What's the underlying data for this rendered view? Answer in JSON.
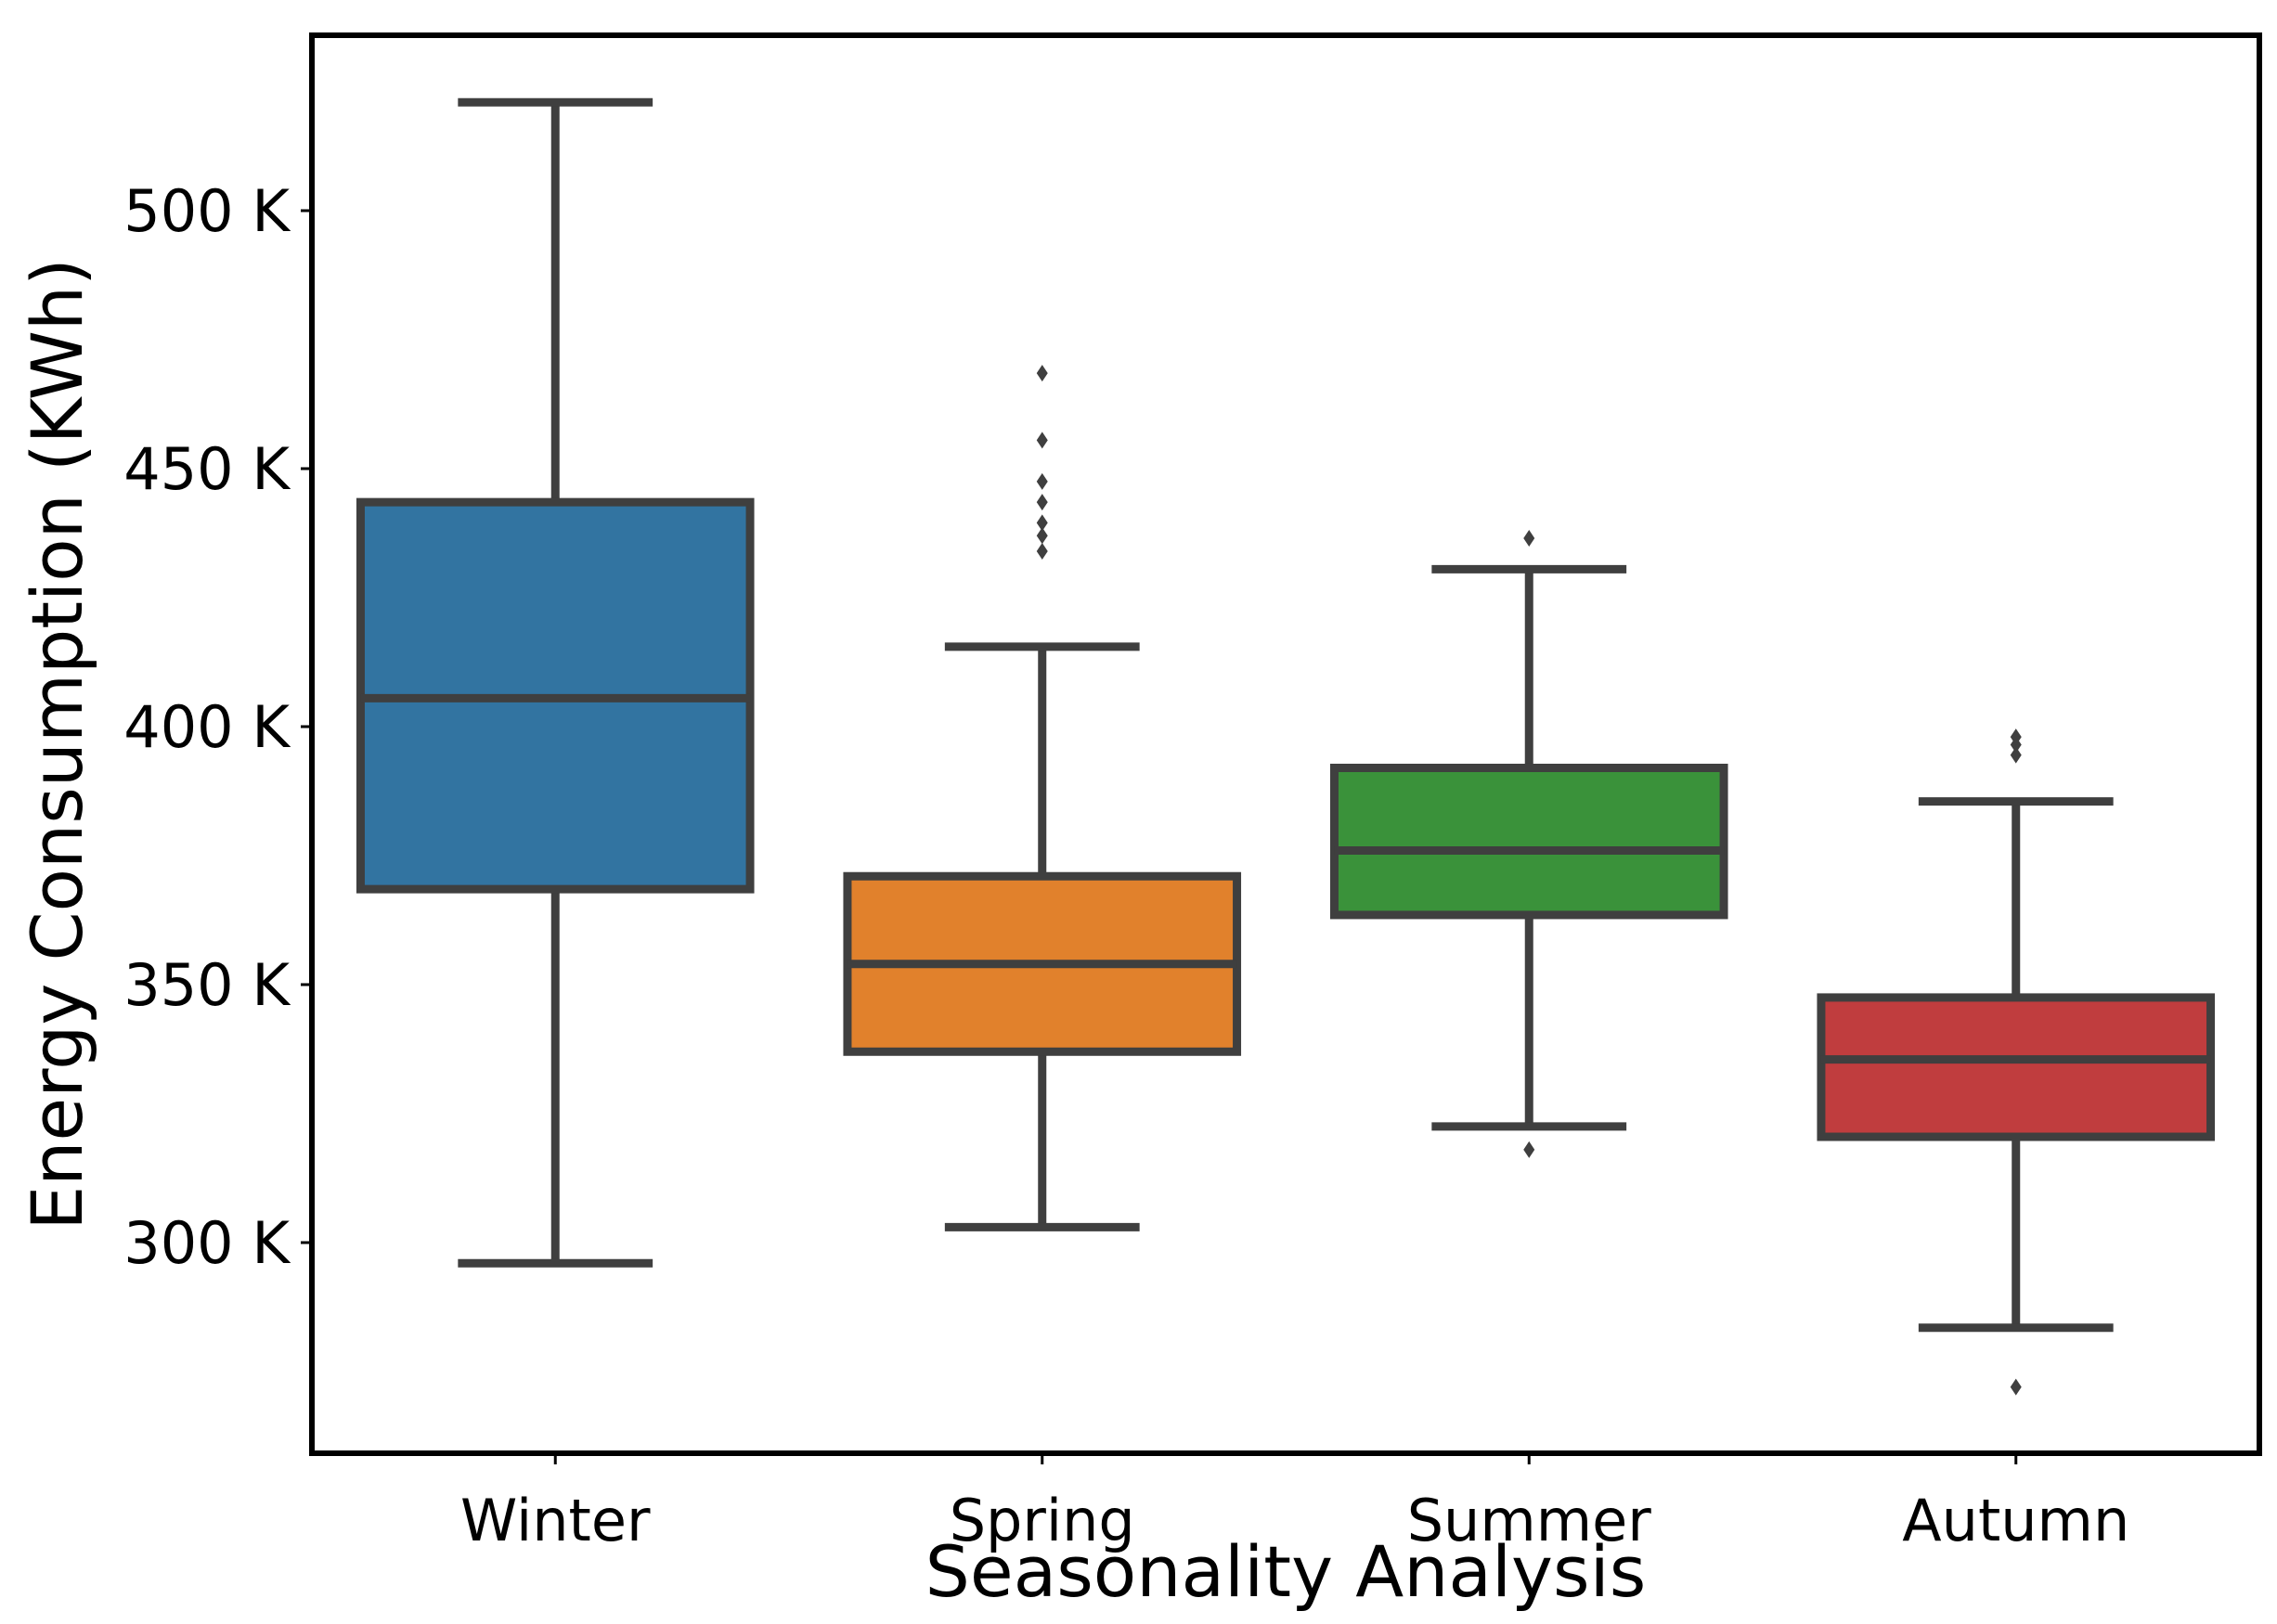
{
  "chart_data": {
    "type": "boxplot",
    "title": "",
    "xlabel": "Seasonality Analysis",
    "ylabel": "Energy Consumption (KWh)",
    "ylim": [
      260000,
      532000
    ],
    "yticks": [
      {
        "value": 300000,
        "label": "300 K"
      },
      {
        "value": 350000,
        "label": "350 K"
      },
      {
        "value": 400000,
        "label": "400 K"
      },
      {
        "value": 450000,
        "label": "450 K"
      },
      {
        "value": 500000,
        "label": "500 K"
      }
    ],
    "grid": false,
    "categories": [
      "Winter",
      "Spring",
      "Summer",
      "Autumn"
    ],
    "boxes": [
      {
        "category": "Winter",
        "color": "#3274a1",
        "whisker_low": 296000,
        "q1": 368500,
        "median": 405500,
        "q3": 443500,
        "whisker_high": 521000,
        "outliers": []
      },
      {
        "category": "Spring",
        "color": "#e1812c",
        "whisker_low": 303000,
        "q1": 337000,
        "median": 354000,
        "q3": 371000,
        "whisker_high": 415500,
        "outliers": [
          434000,
          437000,
          439500,
          443500,
          447500,
          455500,
          468500
        ]
      },
      {
        "category": "Summer",
        "color": "#3a923a",
        "whisker_low": 322500,
        "q1": 363500,
        "median": 376000,
        "q3": 392000,
        "whisker_high": 430500,
        "outliers": [
          318000,
          436500
        ]
      },
      {
        "category": "Autumn",
        "color": "#c03d3e",
        "whisker_low": 283500,
        "q1": 320500,
        "median": 335500,
        "q3": 347500,
        "whisker_high": 385500,
        "outliers": [
          272000,
          394500,
          396500,
          398000
        ]
      }
    ]
  }
}
